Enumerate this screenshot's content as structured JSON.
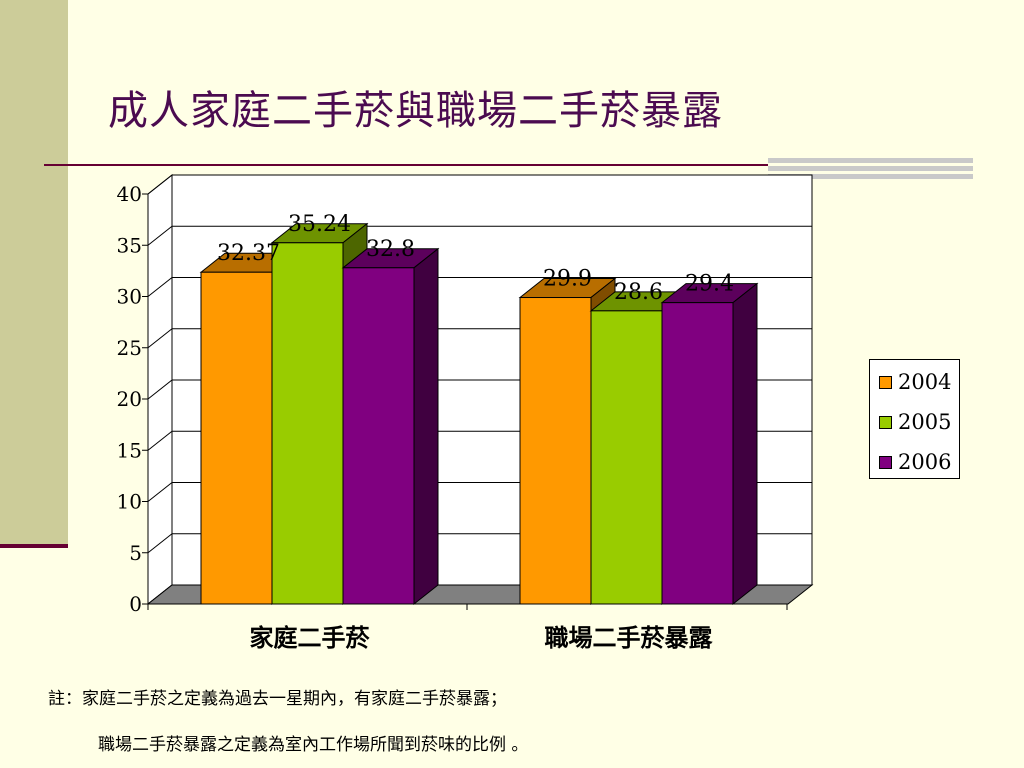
{
  "title": "成人家庭二手菸與職場二手菸暴露",
  "notes": {
    "line1": "註：家庭二手菸之定義為過去一星期內，有家庭二手菸暴露；",
    "line2": "職場二手菸暴露之定義為室內工作場所聞到菸味的比例 。"
  },
  "colors": {
    "background": "#FFFFE6",
    "title": "#4B0B50",
    "accent_rule": "#660033"
  },
  "chart_data": {
    "type": "bar",
    "categories": [
      "家庭二手菸",
      "職場二手菸暴露"
    ],
    "series": [
      {
        "name": "2004",
        "values": [
          32.37,
          29.9
        ],
        "labels": [
          "32.37",
          "29.9"
        ],
        "color": "#FF9900"
      },
      {
        "name": "2005",
        "values": [
          35.24,
          28.6
        ],
        "labels": [
          "35.24",
          "28.6"
        ],
        "color": "#99CC00"
      },
      {
        "name": "2006",
        "values": [
          32.8,
          29.4
        ],
        "labels": [
          "32.8",
          "29.4"
        ],
        "color": "#800080"
      }
    ],
    "ylim": [
      0,
      40
    ],
    "yticks": [
      "0",
      "5",
      "10",
      "15",
      "20",
      "25",
      "30",
      "35",
      "40"
    ],
    "grid": true,
    "legend_position": "right",
    "style": "3d-clustered-bar"
  }
}
